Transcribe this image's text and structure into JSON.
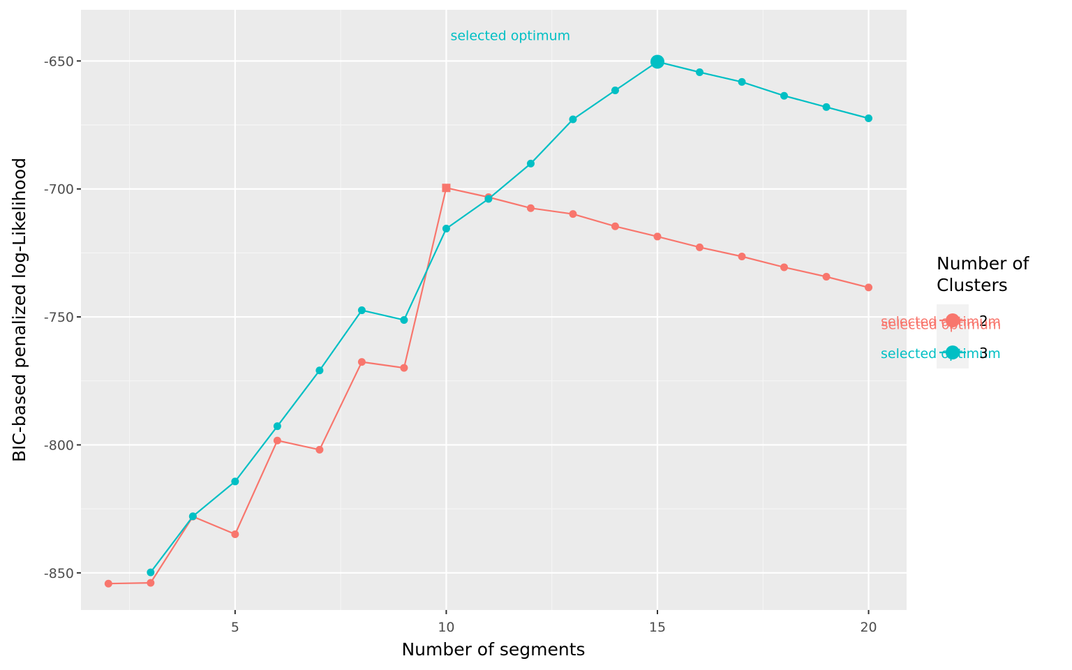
{
  "chart_data": {
    "type": "line",
    "xlabel": "Number of segments",
    "ylabel": "BIC-based penalized log-Likelihood",
    "xlim": [
      1.35,
      20.9
    ],
    "ylim": [
      -864.5,
      -630.0
    ],
    "x_ticks": [
      5,
      10,
      15,
      20
    ],
    "y_ticks": [
      -850,
      -800,
      -750,
      -700,
      -650
    ],
    "grid": true,
    "legend": {
      "title_lines": [
        "Number of",
        "Clusters"
      ],
      "position": "right",
      "entries": [
        "2",
        "3"
      ]
    },
    "series": [
      {
        "name": "2",
        "color": "#F8766D",
        "x": [
          2,
          3,
          4,
          5,
          6,
          7,
          8,
          9,
          10,
          11,
          12,
          13,
          14,
          15,
          16,
          17,
          18,
          19,
          20
        ],
        "y": [
          -854.2,
          -853.9,
          -828.0,
          -834.9,
          -798.3,
          -801.9,
          -767.6,
          -769.9,
          -699.6,
          -703.2,
          -707.5,
          -709.8,
          -714.6,
          -718.6,
          -722.8,
          -726.4,
          -730.6,
          -734.3,
          -738.5
        ],
        "optimum_x": 10,
        "optimum_y": -699.6,
        "annotation": "selected optimum",
        "annotation_x": 20.3,
        "annotation_y": -752.9
      },
      {
        "name": "3",
        "color": "#00BFC4",
        "x": [
          3,
          4,
          5,
          6,
          7,
          8,
          9,
          10,
          11,
          12,
          13,
          14,
          15,
          16,
          17,
          18,
          19,
          20
        ],
        "y": [
          -849.8,
          -827.9,
          -814.3,
          -792.7,
          -770.9,
          -747.4,
          -751.2,
          -715.5,
          -703.9,
          -690.1,
          -672.8,
          -661.5,
          -650.3,
          -654.4,
          -658.2,
          -663.6,
          -668.0,
          -672.4
        ],
        "optimum_x": 15,
        "optimum_y": -650.3,
        "annotation": "selected optimum",
        "annotation_x": 10.1,
        "annotation_y": -640.0
      }
    ]
  }
}
